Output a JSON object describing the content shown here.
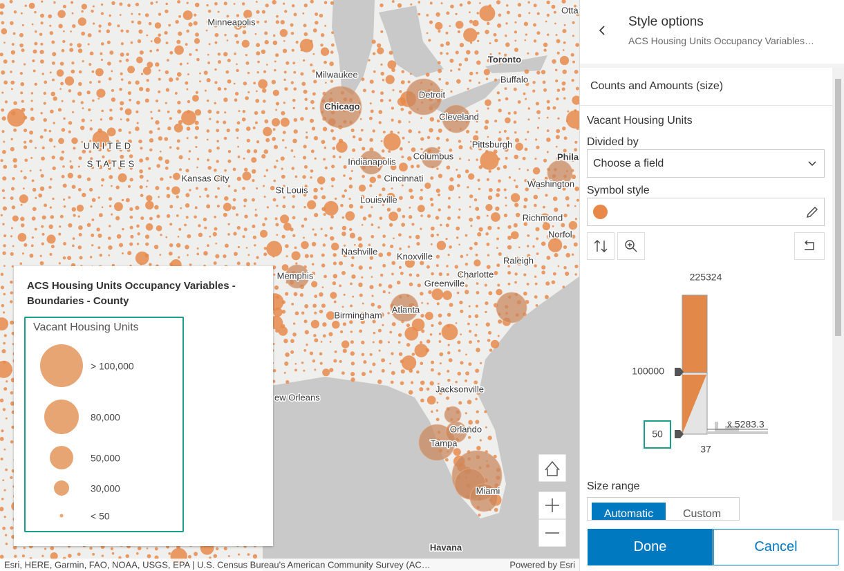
{
  "map": {
    "labels": [
      "Minneapolis",
      "Milwaukee",
      "Chicago",
      "Detroit",
      "Toronto",
      "Buffalo",
      "Cleveland",
      "Pittsburgh",
      "Phila",
      "UNITED",
      "STATES",
      "Kansas City",
      "Indianapolis",
      "Columbus",
      "Cincinnati",
      "Washington",
      "St Louis",
      "Louisville",
      "Richmond",
      "Norfol",
      "Nashville",
      "Knoxville",
      "Raleigh",
      "Charlotte",
      "Memphis",
      "Greenville",
      "Birmingham",
      "Atlanta",
      "Jacksonville",
      "ew Orleans",
      "Orlando",
      "Tampa",
      "Miami",
      "Havana",
      "Otta"
    ],
    "attribution": "Esri, HERE, Garmin, FAO, NOAA, USGS, EPA | U.S. Census Bureau's American Community Survey (AC…",
    "powered_by": "Powered by Esri"
  },
  "legend": {
    "title": "ACS Housing Units Occupancy Variables - Boundaries - County",
    "field": "Vacant Housing Units",
    "items": [
      "> 100,000",
      "80,000",
      "50,000",
      "30,000",
      "< 50"
    ]
  },
  "panel": {
    "title": "Style options",
    "subtitle": "ACS Housing Units Occupancy Variables…",
    "section": "Counts and Amounts (size)",
    "field": "Vacant Housing Units",
    "divided_by_label": "Divided by",
    "divided_by_value": "Choose a field",
    "symbol_style_label": "Symbol style",
    "histogram": {
      "max": 225324,
      "handle_high": 100000,
      "handle_low": 50,
      "min": 37,
      "mean": "x̄ 5283.3"
    },
    "size_range_label": "Size range",
    "size_range_options": [
      "Automatic",
      "Custom"
    ],
    "buttons": [
      "Done",
      "Cancel"
    ]
  }
}
